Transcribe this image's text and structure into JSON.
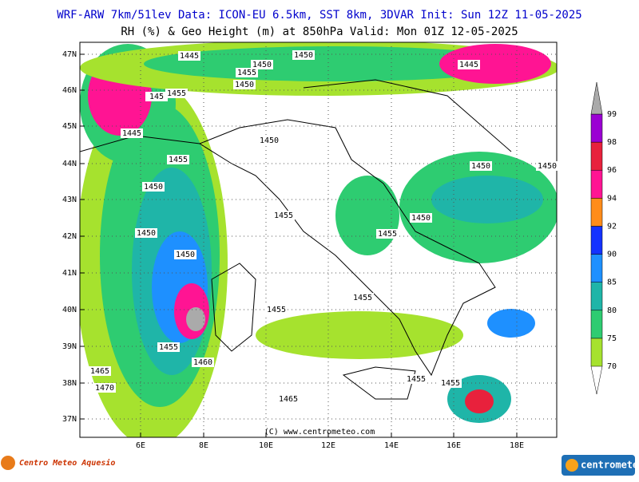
{
  "header": {
    "line1": "WRF-ARW 7km/51lev  Data: ICON-EU 6.5km, SST 8km, 3DVAR  Init: Sun 12Z 11-05-2025",
    "line2": "RH (%) & Geo Height (m) at 850hPa  Valid: Mon 01Z 12-05-2025"
  },
  "map": {
    "lat_labels": [
      "47N",
      "46N",
      "45N",
      "44N",
      "43N",
      "42N",
      "41N",
      "40N",
      "39N",
      "38N",
      "37N"
    ],
    "lon_labels": [
      "6E",
      "8E",
      "10E",
      "12E",
      "14E",
      "16E",
      "18E"
    ],
    "contour_labels": [
      "1445",
      "1450",
      "1450",
      "1455",
      "1450",
      "1445",
      "1455",
      "145",
      "1445",
      "1450",
      "1455",
      "1450",
      "1450",
      "1450",
      "1455",
      "1450",
      "1455",
      "1450",
      "1450",
      "1455",
      "1455",
      "1455",
      "1460",
      "1465",
      "1455",
      "1455",
      "1470",
      "1465"
    ],
    "credit": "(C) www.centrometeo.com"
  },
  "colorbar": {
    "levels": [
      70,
      75,
      80,
      85,
      90,
      92,
      94,
      96,
      98,
      99
    ],
    "colors": [
      "#a6e22e",
      "#2ecc71",
      "#1fb5a8",
      "#1e90ff",
      "#1432ff",
      "#ff8c1a",
      "#ff1493",
      "#e8213c",
      "#9b00d3"
    ],
    "over_color": "#aaaaaa"
  },
  "footer": {
    "left": "Centro Meteo Aquesio",
    "right": "centrometeo"
  }
}
